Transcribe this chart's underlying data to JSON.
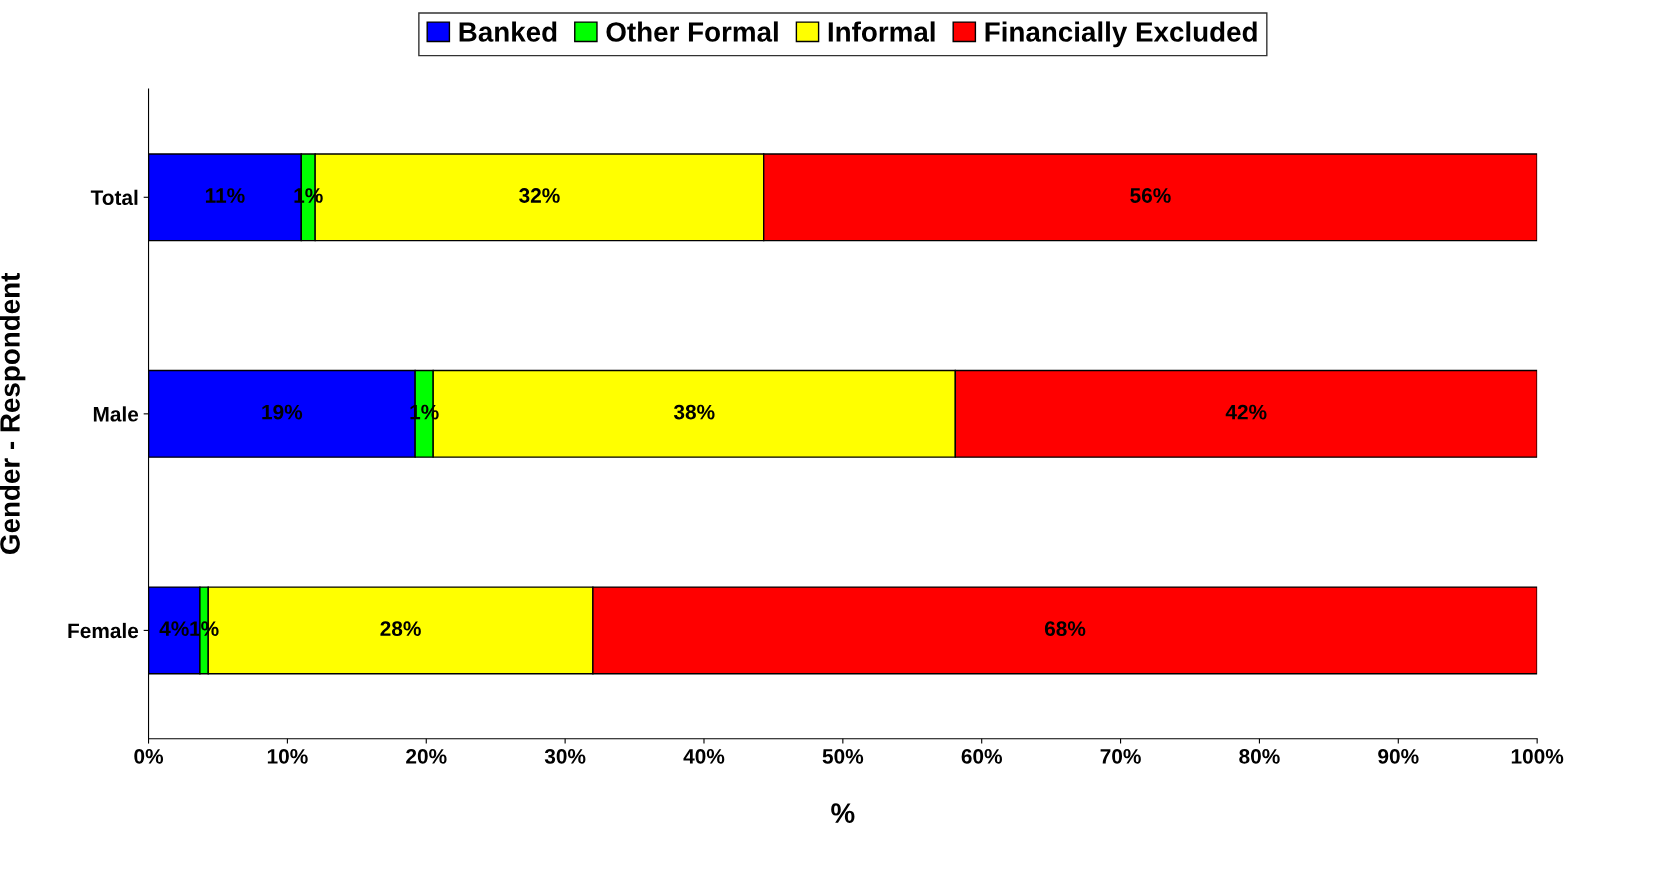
{
  "chart_data": {
    "type": "bar",
    "orientation": "horizontal",
    "stacked": true,
    "categories": [
      "Total",
      "Male",
      "Female"
    ],
    "series": [
      {
        "name": "Banked",
        "color": "#0000ff",
        "values": [
          11,
          19.2,
          3.7
        ],
        "value_labels": [
          "11%",
          "19%",
          "4%"
        ]
      },
      {
        "name": "Other Formal",
        "color": "#00ff00",
        "values": [
          1,
          1.3,
          0.6
        ],
        "value_labels": [
          "1%",
          "1%",
          "1%"
        ]
      },
      {
        "name": "Informal",
        "color": "#ffff00",
        "values": [
          32.3,
          37.6,
          27.7
        ],
        "value_labels": [
          "32%",
          "38%",
          "28%"
        ]
      },
      {
        "name": "Financially Excluded",
        "color": "#ff0000",
        "values": [
          55.7,
          41.9,
          68.0
        ],
        "value_labels": [
          "56%",
          "42%",
          "68%"
        ]
      }
    ],
    "xlabel": "%",
    "ylabel": "Gender - Respondent",
    "xlim": [
      0,
      100
    ],
    "xticks": [
      {
        "value": 0,
        "label": "0%"
      },
      {
        "value": 10,
        "label": "10%"
      },
      {
        "value": 20,
        "label": "20%"
      },
      {
        "value": 30,
        "label": "30%"
      },
      {
        "value": 40,
        "label": "40%"
      },
      {
        "value": 50,
        "label": "50%"
      },
      {
        "value": 60,
        "label": "60%"
      },
      {
        "value": 70,
        "label": "70%"
      },
      {
        "value": 80,
        "label": "80%"
      },
      {
        "value": 90,
        "label": "90%"
      },
      {
        "value": 100,
        "label": "100%"
      }
    ],
    "grid": false,
    "legend": "top"
  }
}
